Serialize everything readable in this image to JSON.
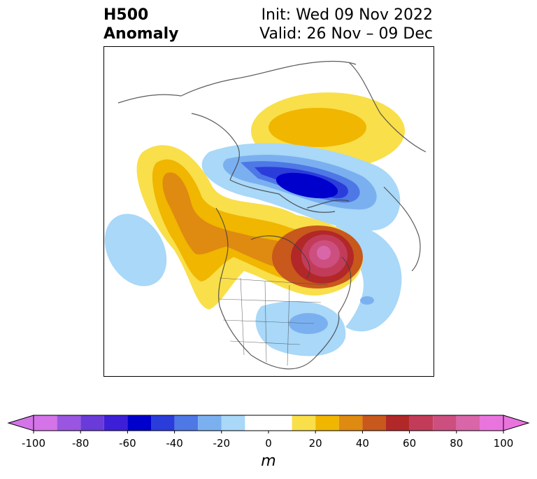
{
  "title": {
    "left_line1": "H500",
    "left_line2": "Anomaly",
    "init": "Init: Wed 09 Nov 2022",
    "valid": "Valid: 26 Nov – 09 Dec"
  },
  "colorbar": {
    "unit": "m",
    "min": -100,
    "max": 100,
    "ticks": [
      "-100",
      "-80",
      "-60",
      "-40",
      "-20",
      "0",
      "20",
      "40",
      "60",
      "80",
      "100"
    ],
    "bins": [
      -100,
      -90,
      -80,
      -70,
      -60,
      -50,
      -40,
      -30,
      -20,
      -10,
      10,
      20,
      30,
      40,
      50,
      60,
      70,
      80,
      90,
      100
    ],
    "colors": [
      "#d474e8",
      "#9a56e0",
      "#6b3bd9",
      "#3e1fd8",
      "#0000cc",
      "#2a3ddb",
      "#4e78e6",
      "#7bb0f0",
      "#a9d8f8",
      "#ffffff",
      "#f9df4a",
      "#f0b600",
      "#df8a10",
      "#c8581c",
      "#b22828",
      "#c23c5a",
      "#cc4f80",
      "#d966a8",
      "#ea74de"
    ]
  },
  "map": {
    "anomalies": [
      {
        "name": "alaska-ridge",
        "sign": "positive",
        "max_m": 40
      },
      {
        "name": "arctic-trough",
        "sign": "negative",
        "min_m": -60
      },
      {
        "name": "hudson-bay-ridge",
        "sign": "positive",
        "max_m": 80
      },
      {
        "name": "siberia-ridge",
        "sign": "positive",
        "max_m": 20
      },
      {
        "name": "east-us-trough",
        "sign": "negative",
        "min_m": -20
      }
    ]
  }
}
